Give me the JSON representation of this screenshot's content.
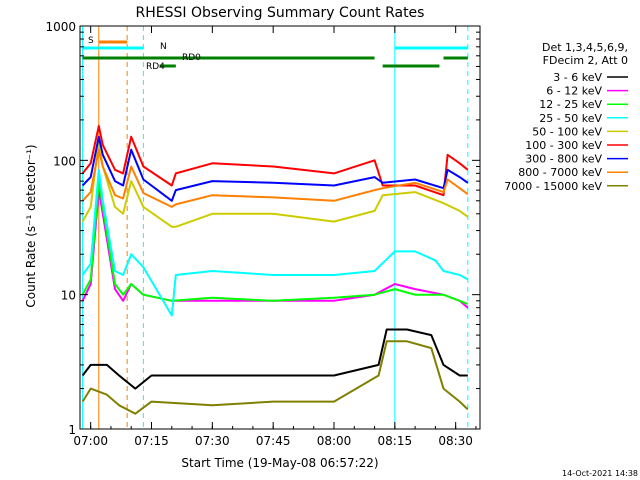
{
  "chart_data": {
    "type": "line",
    "title": "RHESSI Observing Summary Count Rates",
    "xlabel": "Start Time (19-May-08 06:57:22)",
    "ylabel": "Count Rate (s⁻¹ detector⁻¹)",
    "yscale": "log",
    "ylim": [
      1,
      1000
    ],
    "xlim": [
      "06:57:22",
      "08:36:00"
    ],
    "x_ticks": [
      "07:00",
      "07:15",
      "07:30",
      "07:45",
      "08:00",
      "08:15",
      "08:30"
    ],
    "y_ticks": [
      "1",
      "10",
      "100",
      "1000"
    ],
    "grid": false,
    "legend_position": "right",
    "legend_header": [
      "Det 1,3,4,5,6,9,",
      "FDecim 2, Att 0"
    ],
    "series": [
      {
        "name": "3 - 6 keV",
        "color": "#000000",
        "points": [
          [
            "06:58",
            2.5
          ],
          [
            "07:00",
            3
          ],
          [
            "07:04",
            3
          ],
          [
            "07:07",
            2.5
          ],
          [
            "07:11",
            2
          ],
          [
            "07:15",
            2.5
          ],
          [
            "07:30",
            2.5
          ],
          [
            "07:45",
            2.5
          ],
          [
            "08:00",
            2.5
          ],
          [
            "08:11",
            3
          ],
          [
            "08:13",
            5.5
          ],
          [
            "08:18",
            5.5
          ],
          [
            "08:24",
            5
          ],
          [
            "08:27",
            3
          ],
          [
            "08:31",
            2.5
          ],
          [
            "08:33",
            2.5
          ]
        ]
      },
      {
        "name": "6 - 12 keV",
        "color": "#ff00ff",
        "points": [
          [
            "06:58",
            9
          ],
          [
            "07:00",
            12
          ],
          [
            "07:02",
            60
          ],
          [
            "07:03",
            40
          ],
          [
            "07:06",
            11
          ],
          [
            "07:08",
            9
          ],
          [
            "07:10",
            12
          ],
          [
            "07:13",
            10
          ],
          [
            "07:20",
            9
          ],
          [
            "07:30",
            9
          ],
          [
            "07:45",
            9
          ],
          [
            "08:00",
            9
          ],
          [
            "08:10",
            10
          ],
          [
            "08:15",
            12
          ],
          [
            "08:20",
            11
          ],
          [
            "08:27",
            10
          ],
          [
            "08:31",
            9
          ],
          [
            "08:33",
            8
          ]
        ]
      },
      {
        "name": "12 - 25 keV",
        "color": "#00ff00",
        "points": [
          [
            "06:58",
            10
          ],
          [
            "07:00",
            13
          ],
          [
            "07:02",
            70
          ],
          [
            "07:03",
            45
          ],
          [
            "07:06",
            12
          ],
          [
            "07:08",
            10
          ],
          [
            "07:10",
            12
          ],
          [
            "07:13",
            10
          ],
          [
            "07:20",
            9
          ],
          [
            "07:30",
            9.5
          ],
          [
            "07:45",
            9
          ],
          [
            "08:00",
            9.5
          ],
          [
            "08:10",
            10
          ],
          [
            "08:15",
            11
          ],
          [
            "08:20",
            10
          ],
          [
            "08:27",
            10
          ],
          [
            "08:31",
            9
          ],
          [
            "08:33",
            8.5
          ]
        ]
      },
      {
        "name": "25 - 50 keV",
        "color": "#00ffff",
        "points": [
          [
            "06:58",
            14
          ],
          [
            "07:00",
            17
          ],
          [
            "07:02",
            85
          ],
          [
            "07:03",
            50
          ],
          [
            "07:06",
            15
          ],
          [
            "07:08",
            14
          ],
          [
            "07:10",
            20
          ],
          [
            "07:13",
            16
          ],
          [
            "07:20",
            7
          ],
          [
            "07:21",
            14
          ],
          [
            "07:30",
            15
          ],
          [
            "07:45",
            14
          ],
          [
            "08:00",
            14
          ],
          [
            "08:10",
            15
          ],
          [
            "08:15",
            21
          ],
          [
            "08:20",
            21
          ],
          [
            "08:25",
            18
          ],
          [
            "08:27",
            15
          ],
          [
            "08:31",
            14
          ],
          [
            "08:33",
            13
          ]
        ]
      },
      {
        "name": "50 - 100 keV",
        "color": "#cccc00",
        "points": [
          [
            "06:58",
            35
          ],
          [
            "07:00",
            45
          ],
          [
            "07:02",
            140
          ],
          [
            "07:03",
            90
          ],
          [
            "07:06",
            45
          ],
          [
            "07:08",
            40
          ],
          [
            "07:10",
            70
          ],
          [
            "07:13",
            45
          ],
          [
            "07:20",
            32
          ],
          [
            "07:21",
            32
          ],
          [
            "07:30",
            40
          ],
          [
            "07:45",
            40
          ],
          [
            "08:00",
            35
          ],
          [
            "08:10",
            42
          ],
          [
            "08:12",
            55
          ],
          [
            "08:20",
            58
          ],
          [
            "08:27",
            48
          ],
          [
            "08:31",
            42
          ],
          [
            "08:33",
            38
          ]
        ]
      },
      {
        "name": "100 - 300 keV",
        "color": "#ff0000",
        "points": [
          [
            "06:58",
            80
          ],
          [
            "07:00",
            95
          ],
          [
            "07:02",
            180
          ],
          [
            "07:03",
            130
          ],
          [
            "07:06",
            85
          ],
          [
            "07:08",
            80
          ],
          [
            "07:10",
            150
          ],
          [
            "07:13",
            90
          ],
          [
            "07:20",
            65
          ],
          [
            "07:21",
            80
          ],
          [
            "07:30",
            95
          ],
          [
            "07:45",
            90
          ],
          [
            "08:00",
            80
          ],
          [
            "08:10",
            100
          ],
          [
            "08:12",
            65
          ],
          [
            "08:20",
            65
          ],
          [
            "08:27",
            55
          ],
          [
            "08:28",
            110
          ],
          [
            "08:31",
            95
          ],
          [
            "08:33",
            85
          ]
        ]
      },
      {
        "name": "300 - 800 keV",
        "color": "#0000ff",
        "points": [
          [
            "06:58",
            65
          ],
          [
            "07:00",
            75
          ],
          [
            "07:02",
            150
          ],
          [
            "07:03",
            110
          ],
          [
            "07:06",
            70
          ],
          [
            "07:08",
            65
          ],
          [
            "07:10",
            120
          ],
          [
            "07:13",
            72
          ],
          [
            "07:20",
            50
          ],
          [
            "07:21",
            60
          ],
          [
            "07:30",
            70
          ],
          [
            "07:45",
            68
          ],
          [
            "08:00",
            65
          ],
          [
            "08:10",
            75
          ],
          [
            "08:12",
            68
          ],
          [
            "08:20",
            72
          ],
          [
            "08:27",
            62
          ],
          [
            "08:28",
            85
          ],
          [
            "08:31",
            75
          ],
          [
            "08:33",
            68
          ]
        ]
      },
      {
        "name": "800 - 7000 keV",
        "color": "#ff8000",
        "points": [
          [
            "06:58",
            50
          ],
          [
            "07:00",
            58
          ],
          [
            "07:02",
            120
          ],
          [
            "07:03",
            90
          ],
          [
            "07:06",
            55
          ],
          [
            "07:08",
            52
          ],
          [
            "07:10",
            90
          ],
          [
            "07:13",
            57
          ],
          [
            "07:20",
            45
          ],
          [
            "07:21",
            47
          ],
          [
            "07:30",
            55
          ],
          [
            "07:45",
            53
          ],
          [
            "08:00",
            50
          ],
          [
            "08:10",
            60
          ],
          [
            "08:12",
            62
          ],
          [
            "08:20",
            68
          ],
          [
            "08:27",
            58
          ],
          [
            "08:28",
            72
          ],
          [
            "08:31",
            62
          ],
          [
            "08:33",
            56
          ]
        ]
      },
      {
        "name": "7000 - 15000 keV",
        "color": "#808000",
        "points": [
          [
            "06:58",
            1.6
          ],
          [
            "07:00",
            2
          ],
          [
            "07:04",
            1.8
          ],
          [
            "07:07",
            1.5
          ],
          [
            "07:11",
            1.3
          ],
          [
            "07:15",
            1.6
          ],
          [
            "07:30",
            1.5
          ],
          [
            "07:45",
            1.6
          ],
          [
            "08:00",
            1.6
          ],
          [
            "08:11",
            2.5
          ],
          [
            "08:13",
            4.5
          ],
          [
            "08:18",
            4.5
          ],
          [
            "08:24",
            4
          ],
          [
            "08:27",
            2
          ],
          [
            "08:31",
            1.6
          ],
          [
            "08:33",
            1.4
          ]
        ]
      }
    ],
    "annotations": [
      {
        "text": "S",
        "color": "#ff8000"
      },
      {
        "text": "N",
        "color": "#00ffff"
      },
      {
        "text": "RD0",
        "color": "#008000"
      },
      {
        "text": "RD4",
        "color": "#008000"
      }
    ],
    "state_bars": [
      {
        "name": "S",
        "color": "#ff8000",
        "segments": [
          [
            "07:02",
            "07:09"
          ]
        ]
      },
      {
        "name": "N",
        "color": "#00ffff",
        "segments": [
          [
            "06:58",
            "07:13"
          ],
          [
            "08:15",
            "08:33"
          ]
        ]
      },
      {
        "name": "RD0",
        "color": "#008000",
        "segments": [
          [
            "06:58",
            "08:10"
          ],
          [
            "08:27",
            "08:33"
          ]
        ]
      },
      {
        "name": "RD4",
        "color": "#008000",
        "segments": [
          [
            "07:17",
            "07:21"
          ],
          [
            "08:12",
            "08:26"
          ]
        ]
      }
    ],
    "vertical_markers": [
      {
        "time": "06:58",
        "color": "#00ffff",
        "style": "solid"
      },
      {
        "time": "07:02",
        "color": "#ff8000",
        "style": "solid"
      },
      {
        "time": "07:09",
        "color": "#ff8000",
        "style": "dashed"
      },
      {
        "time": "07:13",
        "color": "#00ffff",
        "style": "dashed"
      },
      {
        "time": "08:15",
        "color": "#00ffff",
        "style": "solid"
      },
      {
        "time": "08:33",
        "color": "#00ffff",
        "style": "dashed"
      }
    ],
    "footer_stamp": "14-Oct-2021 14:38"
  }
}
